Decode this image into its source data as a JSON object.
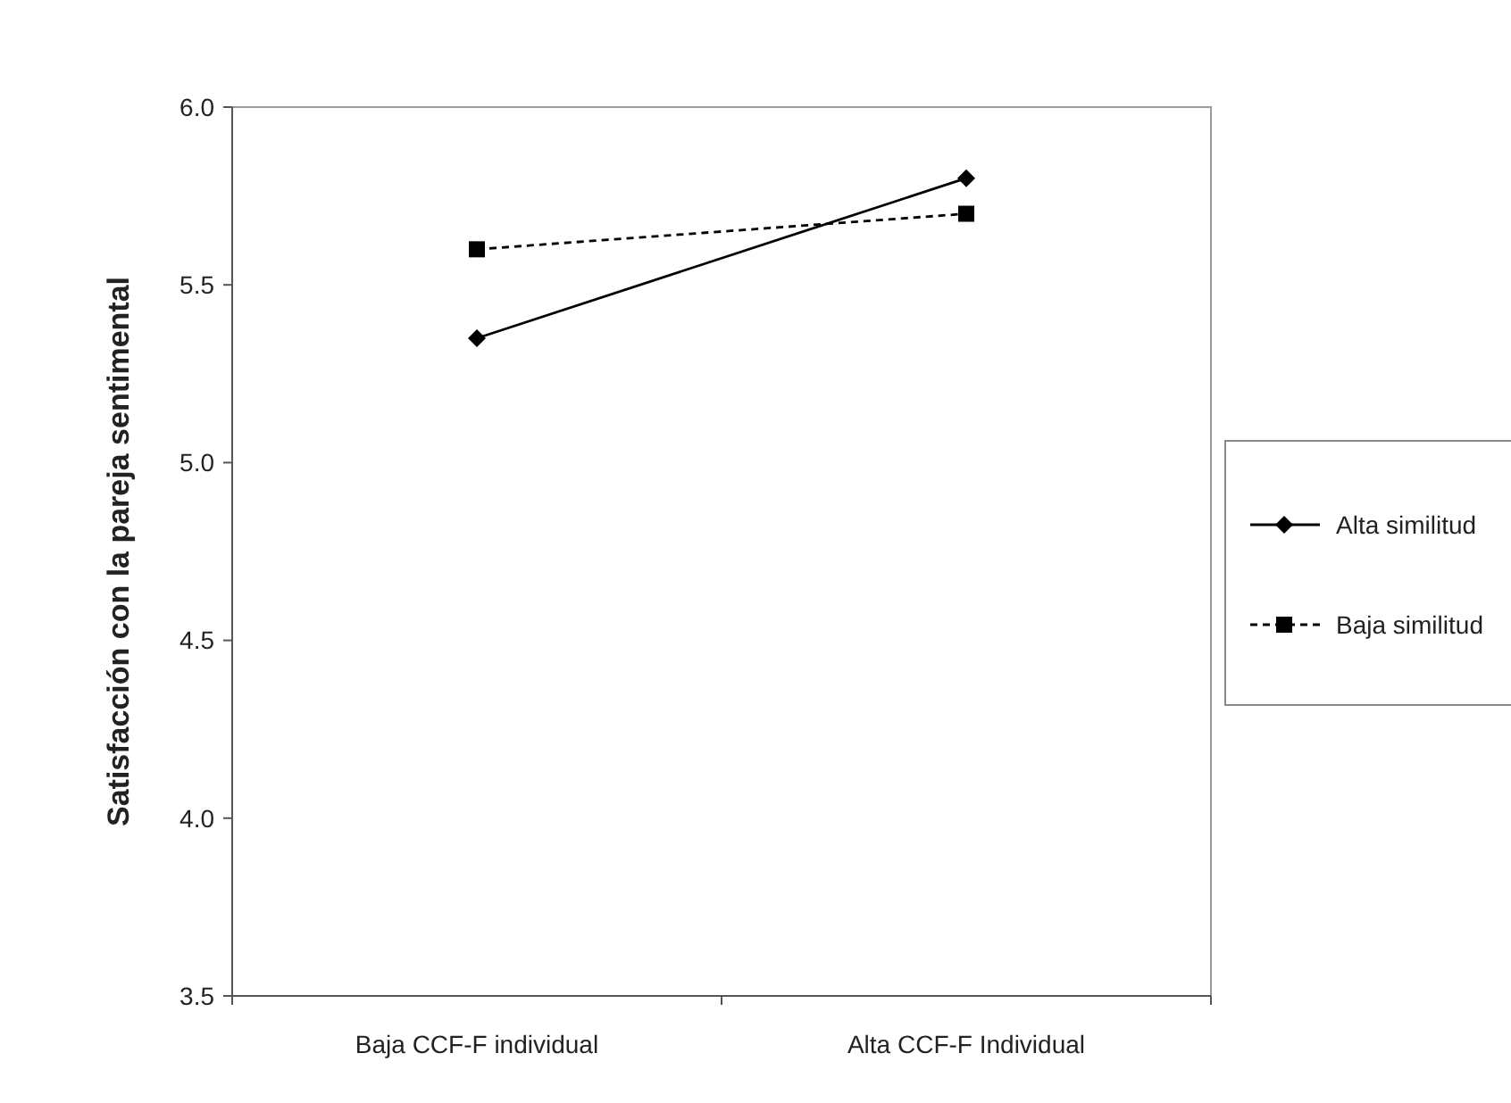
{
  "chart_data": {
    "type": "line",
    "ylabel": "Satisfacción con la pareja sentimental",
    "categories": [
      "Baja CCF-F individual",
      "Alta CCF-F Individual"
    ],
    "series": [
      {
        "name": "Alta similitud",
        "color": "#000000",
        "values": [
          5.35,
          5.8
        ],
        "marker": "diamond",
        "line_style": "solid"
      },
      {
        "name": "Baja similitud",
        "color": "#000000",
        "values": [
          5.6,
          5.7
        ],
        "marker": "square",
        "line_style": "dashed"
      }
    ],
    "ylim": [
      3.5,
      6.0
    ],
    "yticks": [
      {
        "value": 3.5,
        "label": "3.5"
      },
      {
        "value": 4,
        "label": "4.0"
      },
      {
        "value": 4.5,
        "label": "4.5"
      },
      {
        "value": 5,
        "label": "5.0"
      },
      {
        "value": 5.5,
        "label": "5.5"
      },
      {
        "value": 6,
        "label": "6.0"
      }
    ],
    "grid": false,
    "legend": "right"
  }
}
